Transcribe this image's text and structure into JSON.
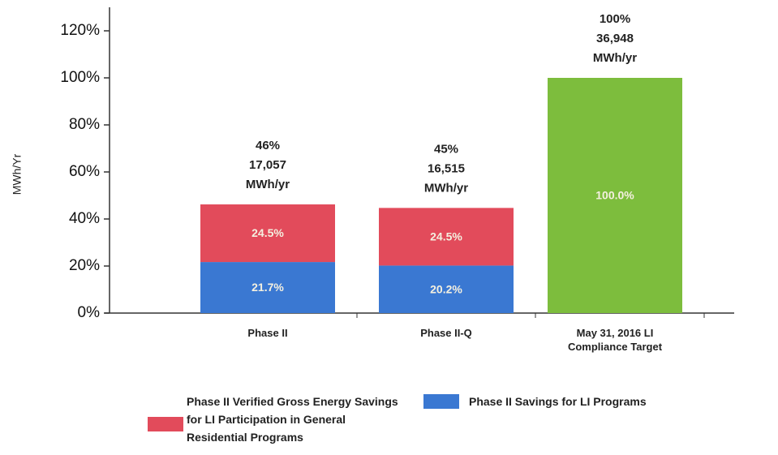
{
  "chart_data": {
    "type": "stacked_bar",
    "y_label": "MWh/Yr",
    "categories": [
      "Phase II",
      "Phase II-Q",
      "May 31, 2016 LI Compliance Target"
    ],
    "series": [
      {
        "name": "Phase II Savings for LI Programs",
        "color": "#3a78d2",
        "values": [
          21.7,
          20.2,
          null
        ],
        "value_labels": [
          "21.7%",
          "20.2%",
          null
        ]
      },
      {
        "name": "Phase II Verified Gross Energy Savings for LI Participation in General Residential Programs",
        "color": "#e24b5b",
        "values": [
          24.5,
          24.5,
          null
        ],
        "value_labels": [
          "24.5%",
          "24.5%",
          null
        ]
      },
      {
        "color": "#7dbd3d",
        "values": [
          null,
          null,
          100
        ],
        "value_labels": [
          null,
          null,
          "100.0%"
        ]
      }
    ],
    "top_labels": [
      [
        "46%",
        "17,057",
        "MWh/yr"
      ],
      [
        "45%",
        "16,515",
        "MWh/yr"
      ],
      [
        "100%",
        "36,948",
        "MWh/yr"
      ]
    ],
    "ylim": [
      0,
      130
    ],
    "yticks": [
      {
        "value": 0,
        "label": "0%"
      },
      {
        "value": 20,
        "label": "20%"
      },
      {
        "value": 40,
        "label": "40%"
      },
      {
        "value": 60,
        "label": "60%"
      },
      {
        "value": 80,
        "label": "80%"
      },
      {
        "value": 100,
        "label": "100%"
      },
      {
        "value": 120,
        "label": "120%"
      }
    ],
    "grid": false
  }
}
